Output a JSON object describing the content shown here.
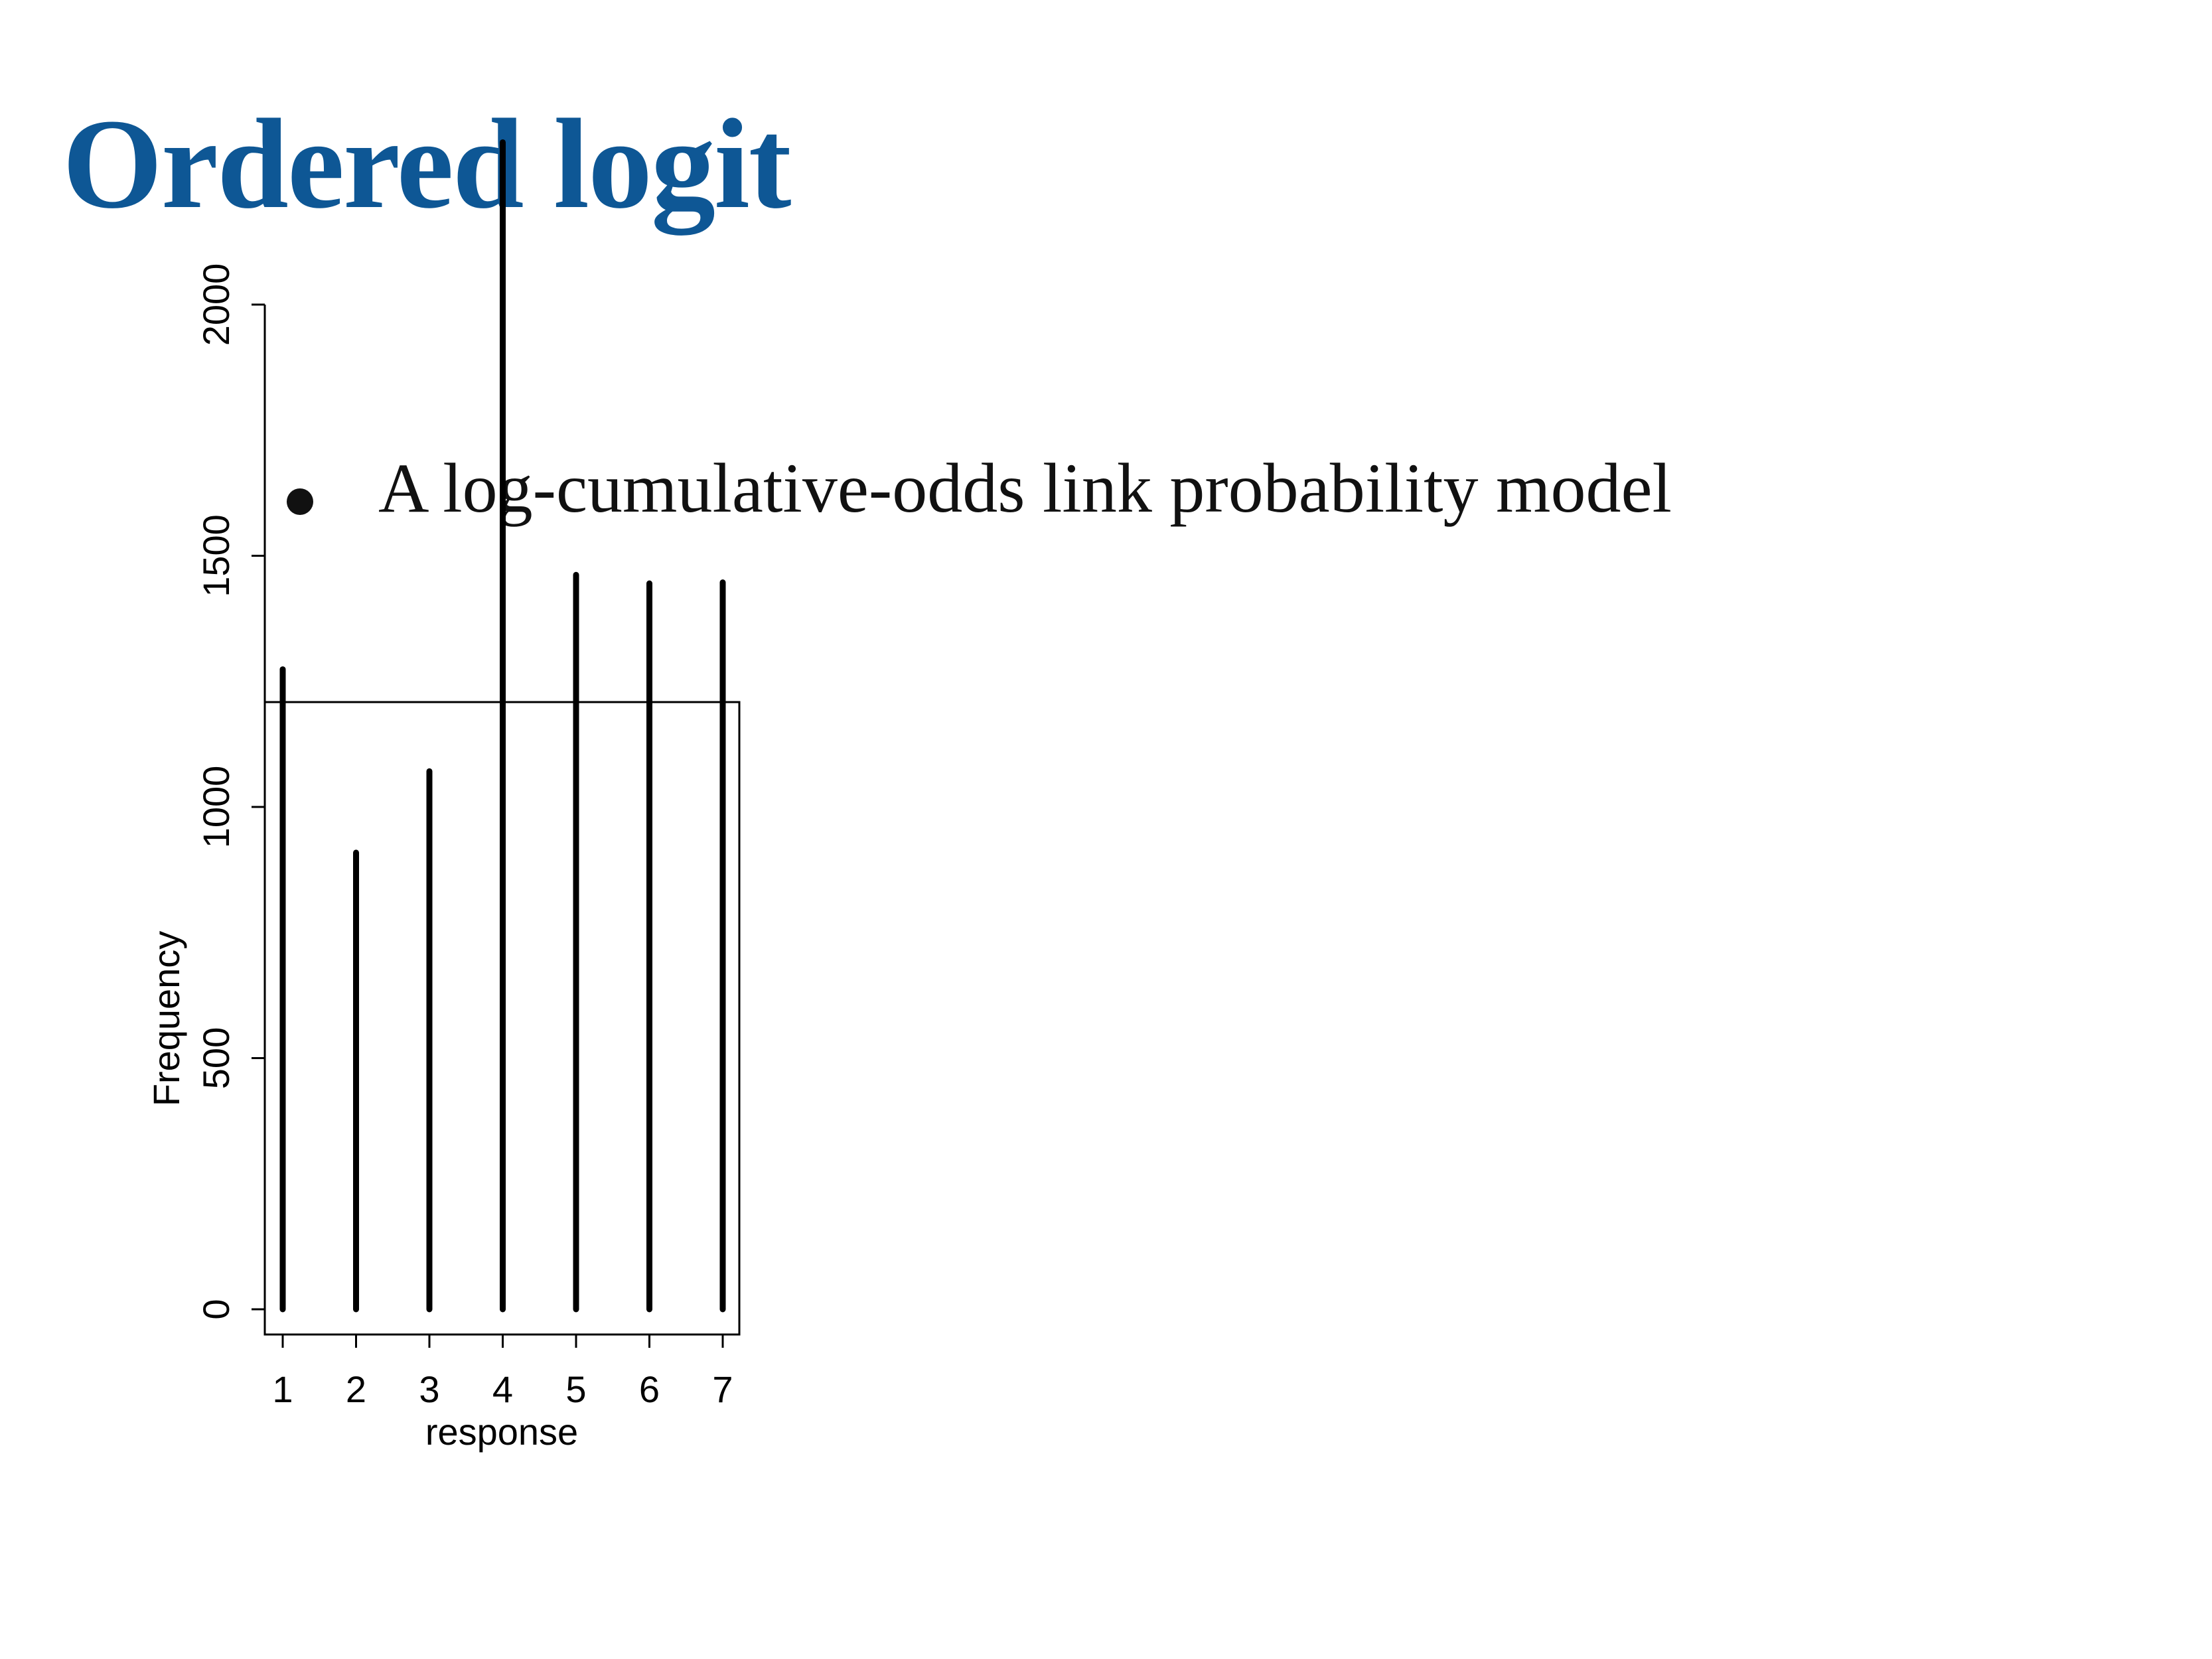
{
  "slide": {
    "title": "Ordered logit",
    "bullets": [
      "A log-cumulative-odds link probability model"
    ]
  },
  "colors": {
    "title": "#0e5795",
    "text": "#111111",
    "bars": "#000000"
  },
  "chart_data": {
    "type": "bar",
    "style": "histogram-spikes",
    "categories": [
      "1",
      "2",
      "3",
      "4",
      "5",
      "6",
      "7"
    ],
    "values": [
      1274,
      909,
      1071,
      2323,
      1462,
      1445,
      1447
    ],
    "xlabel": "response",
    "ylabel": "Frequency",
    "yticks": [
      0,
      500,
      1000,
      1500,
      2000
    ],
    "ylim": [
      0,
      2323
    ],
    "grid": false,
    "legend": "none"
  }
}
